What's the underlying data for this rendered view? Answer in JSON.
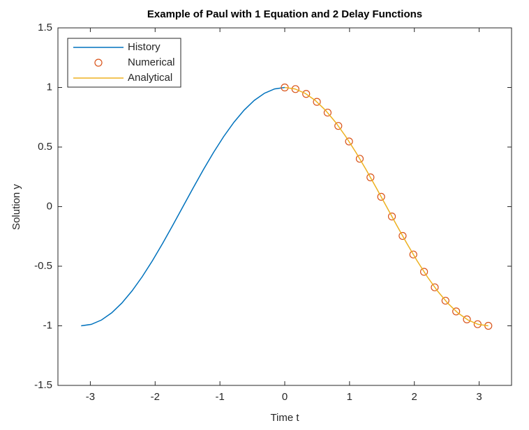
{
  "chart_data": {
    "type": "line",
    "title": "Example of Paul with 1 Equation and 2 Delay Functions",
    "x_label": "Time t",
    "y_label": "Solution y",
    "xlim": [
      -3.5,
      3.5
    ],
    "ylim": [
      -1.5,
      1.5
    ],
    "xticks": [
      -3,
      -2,
      -1,
      0,
      1,
      2,
      3
    ],
    "yticks": [
      -1.5,
      -1,
      -0.5,
      0,
      0.5,
      1,
      1.5
    ],
    "legend": "northwest",
    "series": [
      {
        "name": "History",
        "color": "#0072BD",
        "style": "line",
        "x": [
          -3.1416,
          -2.9845,
          -2.8274,
          -2.6704,
          -2.5133,
          -2.3562,
          -2.1991,
          -2.042,
          -1.885,
          -1.7279,
          -1.5708,
          -1.4137,
          -1.2566,
          -1.0996,
          -0.9425,
          -0.7854,
          -0.6283,
          -0.4712,
          -0.3142,
          -0.1571,
          0
        ],
        "values": [
          -1,
          -0.9877,
          -0.9511,
          -0.891,
          -0.809,
          -0.7071,
          -0.5878,
          -0.454,
          -0.309,
          -0.1564,
          0,
          0.1564,
          0.309,
          0.454,
          0.5878,
          0.7071,
          0.809,
          0.891,
          0.9511,
          0.9877,
          1
        ]
      },
      {
        "name": "Numerical",
        "color": "#D95319",
        "style": "marker",
        "x": [
          0,
          0.1653,
          0.3307,
          0.496,
          0.6614,
          0.8267,
          0.9921,
          1.1574,
          1.3228,
          1.4881,
          1.6535,
          1.8188,
          1.9842,
          2.1495,
          2.3149,
          2.4802,
          2.6456,
          2.8109,
          2.9762,
          3.1416
        ],
        "values": [
          1,
          0.9864,
          0.9458,
          0.8795,
          0.7891,
          0.6773,
          0.5469,
          0.4017,
          0.2455,
          0.0826,
          -0.0826,
          -0.2455,
          -0.4017,
          -0.5469,
          -0.6773,
          -0.7891,
          -0.8795,
          -0.9458,
          -0.9864,
          -1
        ]
      },
      {
        "name": "Analytical",
        "color": "#EDB120",
        "style": "line",
        "x": [
          0,
          0.1571,
          0.3142,
          0.4712,
          0.6283,
          0.7854,
          0.9425,
          1.0996,
          1.2566,
          1.4137,
          1.5708,
          1.7279,
          1.885,
          2.042,
          2.1991,
          2.3562,
          2.5133,
          2.6704,
          2.8274,
          2.9845,
          3.1416
        ],
        "values": [
          1,
          0.9877,
          0.9511,
          0.891,
          0.809,
          0.7071,
          0.5878,
          0.454,
          0.309,
          0.1564,
          0,
          -0.1564,
          -0.309,
          -0.454,
          -0.5878,
          -0.7071,
          -0.809,
          -0.891,
          -0.9511,
          -0.9877,
          -1
        ]
      }
    ]
  }
}
